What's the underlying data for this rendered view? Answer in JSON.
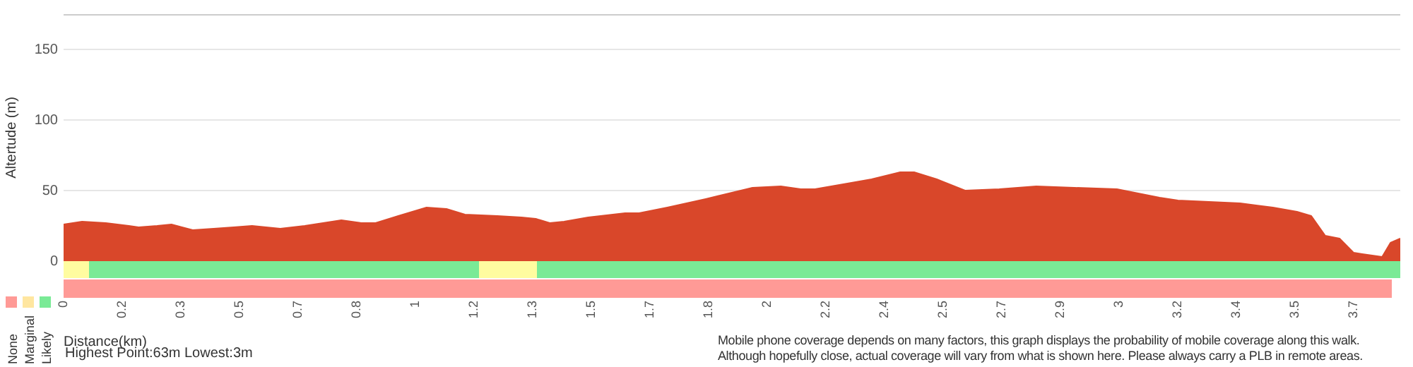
{
  "chart_data": {
    "type": "area",
    "xlabel": "Distance(km)",
    "ylabel": "Altertude (m)",
    "x": [
      0,
      0.053,
      0.121,
      0.187,
      0.215,
      0.268,
      0.309,
      0.37,
      0.43,
      0.487,
      0.54,
      0.621,
      0.691,
      0.796,
      0.853,
      0.894,
      0.959,
      1.04,
      1.097,
      1.15,
      1.243,
      1.312,
      1.353,
      1.393,
      1.434,
      1.503,
      1.609,
      1.649,
      1.73,
      1.84,
      1.974,
      2.055,
      2.112,
      2.153,
      2.246,
      2.315,
      2.397,
      2.437,
      2.502,
      2.583,
      2.681,
      2.787,
      2.896,
      3.018,
      3.14,
      3.193,
      3.371,
      3.465,
      3.534,
      3.575,
      3.615,
      3.656,
      3.696,
      3.721,
      3.778,
      3.802,
      3.83
    ],
    "series": [
      {
        "color": "#d9472a",
        "values": [
          26,
          28,
          27,
          25,
          24,
          25,
          26,
          22,
          23,
          24,
          25,
          23,
          25,
          29,
          27,
          27,
          32,
          38,
          37,
          33,
          32,
          31,
          30,
          27,
          28,
          31,
          34,
          34,
          38,
          44,
          52,
          53,
          51,
          51,
          55,
          58,
          63,
          63,
          58,
          50,
          51,
          53,
          52,
          51,
          45,
          43,
          41,
          38,
          35,
          32,
          18,
          16,
          6,
          5,
          3,
          13,
          16
        ]
      }
    ],
    "xlim": [
      0,
      3.83
    ],
    "xticks": [
      0,
      {
        "value": 0.168,
        "label": "0.2"
      },
      {
        "value": 0.336,
        "label": "0.3"
      },
      {
        "value": 0.504,
        "label": "0.5"
      },
      {
        "value": 0.672,
        "label": "0.7"
      },
      {
        "value": 0.84,
        "label": "0.8"
      },
      {
        "value": 1.008,
        "label": "1"
      },
      {
        "value": 1.176,
        "label": "1.2"
      },
      {
        "value": 1.344,
        "label": "1.3"
      },
      {
        "value": 1.512,
        "label": "1.5"
      },
      {
        "value": 1.68,
        "label": "1.7"
      },
      {
        "value": 1.848,
        "label": "1.8"
      },
      {
        "value": 2.016,
        "label": "2"
      },
      {
        "value": 2.184,
        "label": "2.2"
      },
      {
        "value": 2.352,
        "label": "2.4"
      },
      {
        "value": 2.52,
        "label": "2.5"
      },
      {
        "value": 2.688,
        "label": "2.7"
      },
      {
        "value": 2.856,
        "label": "2.9"
      },
      {
        "value": 3.024,
        "label": "3"
      },
      {
        "value": 3.192,
        "label": "3.2"
      },
      {
        "value": 3.36,
        "label": "3.4"
      },
      {
        "value": 3.528,
        "label": "3.5"
      },
      {
        "value": 3.696,
        "label": "3.7"
      }
    ],
    "ylim": [
      0,
      175
    ],
    "yticks": [
      0,
      50,
      100,
      150
    ],
    "grid": "y",
    "legend": false,
    "annotations": [
      "None",
      "Marginal",
      "Likely",
      "Highest Point:63m Lowest:3m",
      "Mobile phone coverage depends on many factors, this graph displays the probability of mobile coverage along this walk.",
      "Although hopefully close, actual coverage will vary from what is shown here. Please always carry a PLB in remote areas."
    ]
  }
}
